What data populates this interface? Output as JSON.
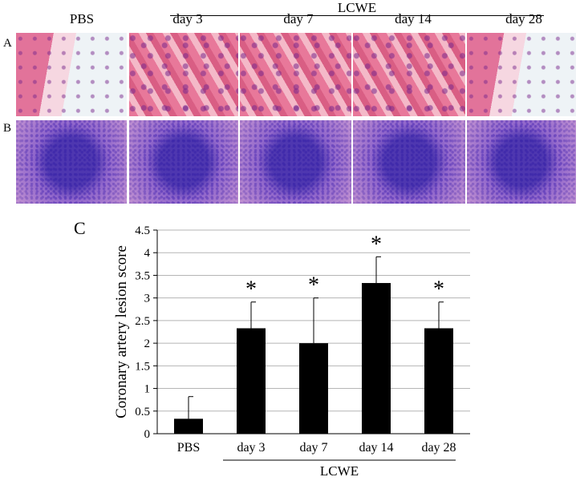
{
  "panel_a": {
    "letter": "A",
    "column_labels": [
      "PBS",
      "day 3",
      "day 7",
      "day 14",
      "day 28"
    ],
    "group_label": "LCWE"
  },
  "panel_b": {
    "letter": "B"
  },
  "panel_c": {
    "letter": "C"
  },
  "chart_data": {
    "type": "bar",
    "categories": [
      "PBS",
      "day 3",
      "day 7",
      "day 14",
      "day 28"
    ],
    "values": [
      0.33,
      2.33,
      2.0,
      3.33,
      2.33
    ],
    "errors": [
      0.49,
      0.58,
      1.0,
      0.58,
      0.58
    ],
    "significance": [
      "",
      "*",
      "*",
      "*",
      "*"
    ],
    "xlabel": "",
    "ylabel": "Coronary artery lesion score",
    "group_label": "LCWE",
    "ylim": [
      0,
      4.5
    ],
    "yticks": [
      "0",
      "0.5",
      "1",
      "1.5",
      "2",
      "2.5",
      "3",
      "3.5",
      "4",
      "4.5"
    ],
    "grid": true,
    "bar_color": "#000000"
  }
}
